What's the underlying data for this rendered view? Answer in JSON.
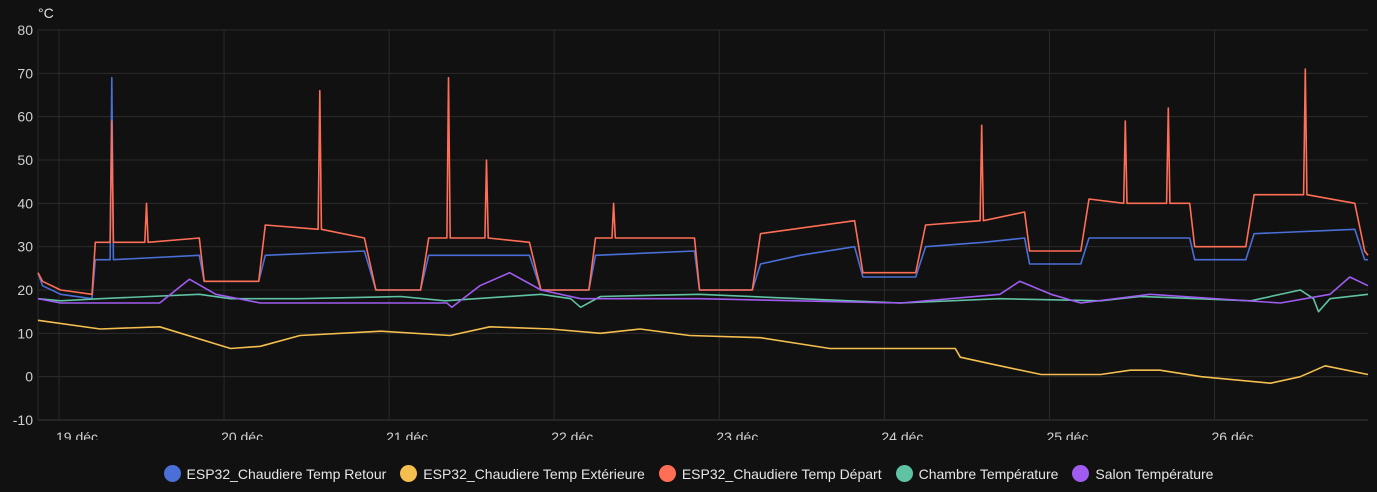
{
  "chart_data": {
    "type": "line",
    "unit_label": "°C",
    "ylim": [
      -10,
      80
    ],
    "yticks": [
      -10,
      0,
      10,
      20,
      30,
      40,
      50,
      60,
      70,
      80
    ],
    "x_unit": "days since 19 déc. 00:00",
    "xlim": [
      -0.127,
      7.93
    ],
    "xticks": [
      {
        "value": 0,
        "label": "19 déc."
      },
      {
        "value": 1,
        "label": "20 déc."
      },
      {
        "value": 2,
        "label": "21 déc."
      },
      {
        "value": 3,
        "label": "22 déc."
      },
      {
        "value": 4,
        "label": "23 déc."
      },
      {
        "value": 5,
        "label": "24 déc."
      },
      {
        "value": 6,
        "label": "25 déc."
      },
      {
        "value": 7,
        "label": "26 déc."
      }
    ],
    "grid": true,
    "legend_position": "bottom",
    "series": [
      {
        "name": "ESP32_Chaudiere Temp Retour",
        "color": "#4a6fd6",
        "points": [
          [
            -0.127,
            24
          ],
          [
            -0.1,
            21
          ],
          [
            0.01,
            19
          ],
          [
            0.2,
            18
          ],
          [
            0.22,
            27
          ],
          [
            0.31,
            27
          ],
          [
            0.32,
            69
          ],
          [
            0.33,
            27
          ],
          [
            0.85,
            28
          ],
          [
            0.88,
            22
          ],
          [
            1.21,
            22
          ],
          [
            1.25,
            28
          ],
          [
            1.85,
            29
          ],
          [
            1.92,
            20
          ],
          [
            2.19,
            20
          ],
          [
            2.24,
            28
          ],
          [
            2.85,
            28
          ],
          [
            2.92,
            20
          ],
          [
            3.21,
            20
          ],
          [
            3.25,
            28
          ],
          [
            3.85,
            29
          ],
          [
            3.88,
            20
          ],
          [
            4.2,
            20
          ],
          [
            4.25,
            26
          ],
          [
            4.49,
            28
          ],
          [
            4.82,
            30
          ],
          [
            4.87,
            23
          ],
          [
            5.19,
            23
          ],
          [
            5.25,
            30
          ],
          [
            5.6,
            31
          ],
          [
            5.85,
            32
          ],
          [
            5.88,
            26
          ],
          [
            6.19,
            26
          ],
          [
            6.24,
            32
          ],
          [
            6.85,
            32
          ],
          [
            6.88,
            27
          ],
          [
            7.19,
            27
          ],
          [
            7.24,
            33
          ],
          [
            7.85,
            34
          ],
          [
            7.91,
            27
          ],
          [
            7.93,
            27
          ]
        ]
      },
      {
        "name": "ESP32_Chaudiere Temp Extérieure",
        "color": "#f4bf4f",
        "points": [
          [
            -0.127,
            13
          ],
          [
            0.25,
            11
          ],
          [
            0.61,
            11.5
          ],
          [
            1.04,
            6.5
          ],
          [
            1.22,
            7
          ],
          [
            1.46,
            9.5
          ],
          [
            1.95,
            10.5
          ],
          [
            2.37,
            9.5
          ],
          [
            2.61,
            11.5
          ],
          [
            2.98,
            11
          ],
          [
            3.28,
            10
          ],
          [
            3.52,
            11
          ],
          [
            3.82,
            9.5
          ],
          [
            4.25,
            9
          ],
          [
            4.67,
            6.5
          ],
          [
            5.1,
            6.5
          ],
          [
            5.43,
            6.5
          ],
          [
            5.46,
            4.5
          ],
          [
            5.64,
            3
          ],
          [
            5.95,
            0.5
          ],
          [
            6.31,
            0.5
          ],
          [
            6.49,
            1.5
          ],
          [
            6.67,
            1.5
          ],
          [
            6.92,
            0
          ],
          [
            7.34,
            -1.5
          ],
          [
            7.52,
            0
          ],
          [
            7.67,
            2.5
          ],
          [
            7.93,
            0.5
          ]
        ]
      },
      {
        "name": "ESP32_Chaudiere Temp Départ",
        "color": "#ff6e55",
        "points": [
          [
            -0.127,
            24
          ],
          [
            -0.1,
            22
          ],
          [
            0.01,
            20
          ],
          [
            0.2,
            19
          ],
          [
            0.22,
            31
          ],
          [
            0.31,
            31
          ],
          [
            0.32,
            59
          ],
          [
            0.33,
            31
          ],
          [
            0.52,
            31
          ],
          [
            0.53,
            40
          ],
          [
            0.54,
            31
          ],
          [
            0.85,
            32
          ],
          [
            0.88,
            22
          ],
          [
            1.21,
            22
          ],
          [
            1.25,
            35
          ],
          [
            1.57,
            34
          ],
          [
            1.58,
            66
          ],
          [
            1.59,
            34
          ],
          [
            1.85,
            32
          ],
          [
            1.92,
            20
          ],
          [
            2.19,
            20
          ],
          [
            2.24,
            32
          ],
          [
            2.35,
            32
          ],
          [
            2.36,
            69
          ],
          [
            2.37,
            32
          ],
          [
            2.58,
            32
          ],
          [
            2.59,
            50
          ],
          [
            2.6,
            32
          ],
          [
            2.85,
            31
          ],
          [
            2.92,
            20
          ],
          [
            3.21,
            20
          ],
          [
            3.25,
            32
          ],
          [
            3.35,
            32
          ],
          [
            3.36,
            40
          ],
          [
            3.37,
            32
          ],
          [
            3.85,
            32
          ],
          [
            3.88,
            20
          ],
          [
            4.2,
            20
          ],
          [
            4.25,
            33
          ],
          [
            4.82,
            36
          ],
          [
            4.87,
            24
          ],
          [
            5.19,
            24
          ],
          [
            5.25,
            35
          ],
          [
            5.58,
            36
          ],
          [
            5.59,
            58
          ],
          [
            5.6,
            36
          ],
          [
            5.85,
            38
          ],
          [
            5.88,
            29
          ],
          [
            6.19,
            29
          ],
          [
            6.24,
            41
          ],
          [
            6.45,
            40
          ],
          [
            6.46,
            59
          ],
          [
            6.47,
            40
          ],
          [
            6.71,
            40
          ],
          [
            6.72,
            62
          ],
          [
            6.73,
            40
          ],
          [
            6.85,
            40
          ],
          [
            6.88,
            30
          ],
          [
            7.19,
            30
          ],
          [
            7.24,
            42
          ],
          [
            7.54,
            42
          ],
          [
            7.55,
            71
          ],
          [
            7.56,
            42
          ],
          [
            7.85,
            40
          ],
          [
            7.91,
            29
          ],
          [
            7.93,
            28
          ]
        ]
      },
      {
        "name": "Chambre Température",
        "color": "#5fc2a3",
        "points": [
          [
            -0.127,
            18
          ],
          [
            0.01,
            17.5
          ],
          [
            0.25,
            18
          ],
          [
            0.85,
            19
          ],
          [
            1.04,
            18
          ],
          [
            1.46,
            18
          ],
          [
            2.07,
            18.5
          ],
          [
            2.34,
            17.5
          ],
          [
            2.92,
            19
          ],
          [
            3.1,
            18
          ],
          [
            3.16,
            16
          ],
          [
            3.28,
            18.5
          ],
          [
            3.88,
            19
          ],
          [
            4.49,
            18
          ],
          [
            5.1,
            17
          ],
          [
            5.7,
            18
          ],
          [
            6.31,
            17.5
          ],
          [
            6.55,
            18.5
          ],
          [
            7.22,
            17.5
          ],
          [
            7.52,
            20
          ],
          [
            7.6,
            18
          ],
          [
            7.63,
            15
          ],
          [
            7.7,
            18
          ],
          [
            7.93,
            19
          ]
        ]
      },
      {
        "name": "Salon Température",
        "color": "#a05cf0",
        "points": [
          [
            -0.127,
            18
          ],
          [
            0.01,
            17
          ],
          [
            0.61,
            17
          ],
          [
            0.79,
            22.5
          ],
          [
            0.95,
            19
          ],
          [
            1.22,
            17
          ],
          [
            2.19,
            17
          ],
          [
            2.35,
            17
          ],
          [
            2.38,
            16
          ],
          [
            2.55,
            21
          ],
          [
            2.73,
            24
          ],
          [
            2.92,
            20
          ],
          [
            3.16,
            18
          ],
          [
            3.88,
            18
          ],
          [
            5.1,
            17
          ],
          [
            5.7,
            19
          ],
          [
            5.82,
            22
          ],
          [
            6.01,
            19
          ],
          [
            6.19,
            17
          ],
          [
            6.61,
            19
          ],
          [
            7.4,
            17
          ],
          [
            7.7,
            19
          ],
          [
            7.82,
            23
          ],
          [
            7.93,
            21
          ]
        ]
      }
    ]
  }
}
